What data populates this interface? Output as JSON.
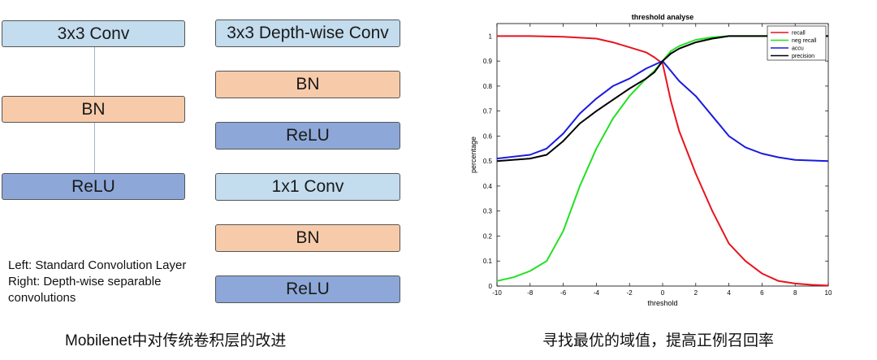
{
  "diagram": {
    "left_column": [
      "3x3 Conv",
      "BN",
      "ReLU"
    ],
    "right_column": [
      "3x3 Depth-wise Conv",
      "BN",
      "ReLU",
      "1x1 Conv",
      "BN",
      "ReLU"
    ],
    "note_lines": [
      "Left: Standard Convolution Layer",
      "Right: Depth-wise separable",
      "convolutions"
    ],
    "caption": "Mobilenet中对传统卷积层的改进"
  },
  "chart_caption": "寻找最优的域值，提高正例召回率",
  "colors": {
    "conv": "#c3dcee",
    "bn": "#f7cbaa",
    "relu": "#8da8d8",
    "recall": "#e8141e",
    "neg_recall": "#22e022",
    "accu": "#1a1ae0",
    "precision": "#000000"
  },
  "chart_data": {
    "type": "line",
    "title": "threshold analyse",
    "xlabel": "threshold",
    "ylabel": "percentage",
    "xlim": [
      -10,
      10
    ],
    "ylim": [
      0,
      1.05
    ],
    "xticks": [
      "-10",
      "-8",
      "-6",
      "-4",
      "-2",
      "0",
      "2",
      "4",
      "6",
      "8",
      "10"
    ],
    "yticks": [
      "0",
      "0.1",
      "0.2",
      "0.3",
      "0.4",
      "0.5",
      "0.6",
      "0.7",
      "0.8",
      "0.9",
      "1"
    ],
    "grid": false,
    "legend_position": "top-right",
    "series": [
      {
        "name": "recall",
        "color": "#e8141e",
        "x": [
          -10,
          -8,
          -6,
          -4,
          -3,
          -2,
          -1,
          -0.5,
          0,
          0.5,
          1,
          2,
          3,
          4,
          5,
          6,
          7,
          8,
          9,
          10
        ],
        "y": [
          1.0,
          1.0,
          0.997,
          0.99,
          0.975,
          0.955,
          0.935,
          0.915,
          0.89,
          0.74,
          0.62,
          0.45,
          0.3,
          0.17,
          0.1,
          0.05,
          0.02,
          0.01,
          0.005,
          0.002
        ]
      },
      {
        "name": "neg recall",
        "color": "#22e022",
        "x": [
          -10,
          -9,
          -8,
          -7,
          -6,
          -5,
          -4,
          -3,
          -2,
          -1,
          -0.5,
          0,
          0.5,
          1,
          2,
          3,
          4,
          6,
          8,
          10
        ],
        "y": [
          0.02,
          0.035,
          0.06,
          0.1,
          0.22,
          0.4,
          0.55,
          0.67,
          0.76,
          0.83,
          0.86,
          0.9,
          0.94,
          0.96,
          0.985,
          0.995,
          1.0,
          1.0,
          1.0,
          1.0
        ]
      },
      {
        "name": "accu",
        "color": "#1a1ae0",
        "x": [
          -10,
          -8,
          -7,
          -6,
          -5,
          -4,
          -3,
          -2,
          -1,
          0,
          0.5,
          1,
          2,
          3,
          4,
          5,
          6,
          7,
          8,
          10
        ],
        "y": [
          0.51,
          0.525,
          0.55,
          0.61,
          0.69,
          0.75,
          0.8,
          0.83,
          0.87,
          0.9,
          0.86,
          0.82,
          0.76,
          0.68,
          0.6,
          0.555,
          0.53,
          0.515,
          0.505,
          0.5
        ]
      },
      {
        "name": "precision",
        "color": "#000000",
        "x": [
          -10,
          -8,
          -7,
          -6,
          -5,
          -4,
          -3,
          -2,
          -1,
          -0.5,
          0,
          0.5,
          1,
          2,
          3,
          4,
          6,
          8,
          10
        ],
        "y": [
          0.5,
          0.51,
          0.525,
          0.58,
          0.65,
          0.7,
          0.745,
          0.79,
          0.83,
          0.855,
          0.9,
          0.93,
          0.95,
          0.975,
          0.99,
          1.0,
          1.0,
          1.0,
          1.0
        ]
      }
    ]
  }
}
